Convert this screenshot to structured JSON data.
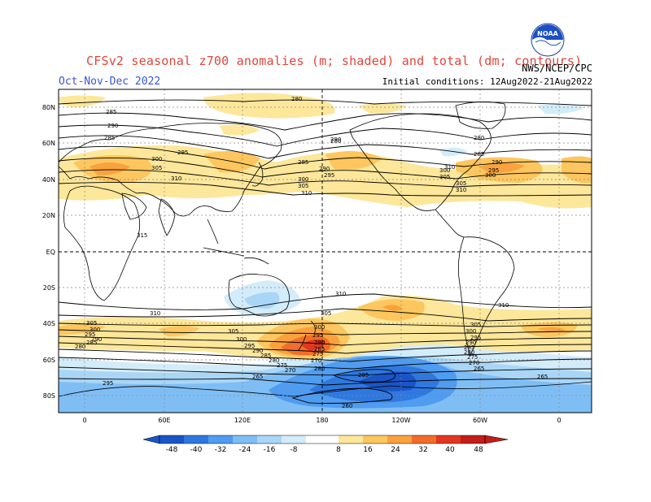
{
  "header": {
    "title": "CFSv2 seasonal z700 anomalies (m; shaded) and total (dm; contours)",
    "season": "Oct-Nov-Dec 2022",
    "initial_conditions": "Initial conditions: 12Aug2022-21Aug2022",
    "agency": "NWS/NCEP/CPC",
    "logo_text": "NOAA"
  },
  "map": {
    "lat_labels": [
      "80N",
      "60N",
      "40N",
      "20N",
      "EQ",
      "20S",
      "40S",
      "60S",
      "80S"
    ],
    "lon_labels": [
      "0",
      "60E",
      "120E",
      "180",
      "120W",
      "60W",
      "0"
    ],
    "contour_labels": [
      "280",
      "285",
      "290",
      "285",
      "300",
      "305",
      "310",
      "315",
      "295",
      "290",
      "285",
      "290",
      "295",
      "300",
      "305",
      "310",
      "300",
      "305",
      "310",
      "285",
      "290",
      "295",
      "300",
      "305",
      "310",
      "310",
      "310",
      "305",
      "300",
      "295",
      "290",
      "285",
      "280",
      "275",
      "270",
      "265",
      "260",
      "305",
      "300",
      "295",
      "290",
      "285",
      "280",
      "305",
      "300",
      "295",
      "290",
      "285",
      "280",
      "275",
      "270",
      "265",
      "310",
      "305",
      "300",
      "295",
      "290",
      "285",
      "280",
      "275",
      "270",
      "265",
      "295",
      "285",
      "280",
      "280"
    ]
  },
  "colorbar": {
    "ticks": [
      "-48",
      "-40",
      "-32",
      "-24",
      "-16",
      "-8",
      "8",
      "16",
      "24",
      "32",
      "40",
      "48"
    ],
    "colors": [
      "#1a55c8",
      "#2f78e0",
      "#4f9cf0",
      "#7fbef5",
      "#a9d6f7",
      "#d3ecfa",
      "#ffffff",
      "#fde79a",
      "#fdc65e",
      "#f9a23e",
      "#f26d2a",
      "#e2361f",
      "#c41d1a"
    ]
  }
}
